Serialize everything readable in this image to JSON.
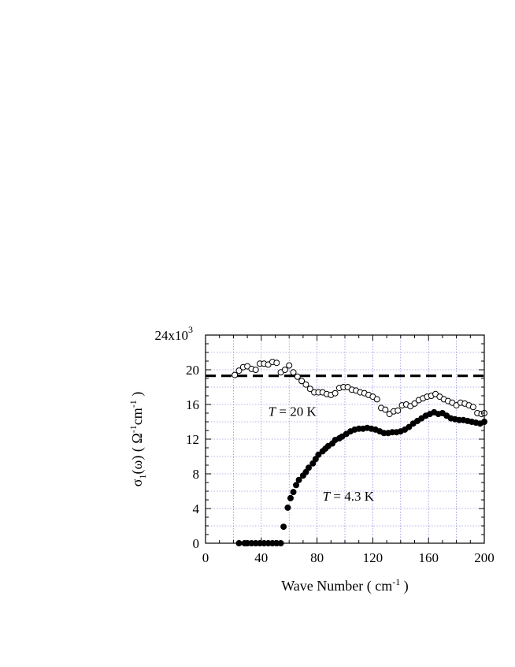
{
  "chart_data": {
    "type": "scatter",
    "xlabel": "Wave Number ( cm",
    "xlabel_sup": "-1",
    "xlabel_end": " )",
    "ylabel_parts": [
      "σ",
      "1",
      "(ω) ( Ω",
      "-1",
      "cm",
      "-1",
      " )"
    ],
    "xlim": [
      0,
      200
    ],
    "ylim": [
      0,
      24000
    ],
    "x_ticks": [
      0,
      40,
      80,
      120,
      160,
      200
    ],
    "x_tick_labels": [
      "0",
      "40",
      "80",
      "120",
      "160",
      "200"
    ],
    "y_ticks": [
      0,
      4000,
      8000,
      12000,
      16000,
      20000,
      24000
    ],
    "y_tick_labels": [
      "0",
      "4",
      "8",
      "12",
      "16",
      "20",
      "24x10"
    ],
    "y_top_exponent": "3",
    "grid": true,
    "reference_line": {
      "y": 19300,
      "style": "dashed"
    },
    "annotations": [
      {
        "italic": "T",
        "text": " = 20 K",
        "x": 45,
        "y": 14700
      },
      {
        "italic": "T",
        "text": " = 4.3 K",
        "x": 84,
        "y": 4900
      }
    ],
    "series": [
      {
        "marker": "open-circle",
        "x": [
          21,
          24,
          27,
          30,
          33,
          36,
          39,
          42,
          45,
          48,
          51,
          54,
          57,
          60,
          63,
          66,
          69,
          72,
          75,
          78,
          81,
          84,
          87,
          90,
          93,
          96,
          99,
          102,
          105,
          108,
          111,
          114,
          117,
          120,
          123,
          126,
          129,
          132,
          135,
          138,
          141,
          144,
          147,
          150,
          153,
          156,
          159,
          162,
          165,
          168,
          171,
          174,
          177,
          180,
          183,
          186,
          189,
          192,
          195,
          198,
          200
        ],
        "y": [
          19400,
          19900,
          20300,
          20400,
          20100,
          20000,
          20700,
          20700,
          20600,
          20900,
          20800,
          19700,
          20000,
          20500,
          19700,
          19200,
          18700,
          18300,
          17800,
          17400,
          17400,
          17400,
          17200,
          17100,
          17300,
          17900,
          18000,
          18000,
          17700,
          17600,
          17400,
          17300,
          17100,
          16900,
          16600,
          15600,
          15400,
          14900,
          15200,
          15300,
          15900,
          16000,
          15800,
          16100,
          16500,
          16700,
          16900,
          17000,
          17200,
          16900,
          16600,
          16400,
          16200,
          15900,
          16200,
          16100,
          15900,
          15700,
          15000,
          14900,
          15000
        ]
      },
      {
        "marker": "filled-circle",
        "x": [
          24,
          28,
          30,
          33,
          36,
          39,
          42,
          45,
          48,
          51,
          54,
          56,
          59,
          61,
          63,
          65,
          67,
          70,
          72,
          74,
          77,
          79,
          81,
          84,
          86,
          88,
          91,
          93,
          96,
          98,
          101,
          104,
          107,
          110,
          113,
          116,
          119,
          122,
          125,
          128,
          131,
          134,
          137,
          140,
          143,
          146,
          149,
          152,
          155,
          158,
          161,
          164,
          167,
          170,
          173,
          176,
          179,
          182,
          185,
          188,
          191,
          194,
          197,
          200
        ],
        "y": [
          0,
          0,
          0,
          0,
          0,
          0,
          0,
          0,
          0,
          0,
          0,
          1900,
          4100,
          5200,
          5900,
          6700,
          7300,
          7800,
          8200,
          8700,
          9200,
          9700,
          10200,
          10600,
          10900,
          11200,
          11500,
          11900,
          12100,
          12300,
          12600,
          12900,
          13100,
          13200,
          13200,
          13300,
          13200,
          13100,
          12900,
          12700,
          12700,
          12800,
          12800,
          12900,
          13100,
          13400,
          13800,
          14100,
          14400,
          14700,
          14900,
          15100,
          14900,
          15000,
          14700,
          14400,
          14300,
          14200,
          14200,
          14100,
          14000,
          13900,
          13800,
          14000
        ]
      }
    ]
  }
}
